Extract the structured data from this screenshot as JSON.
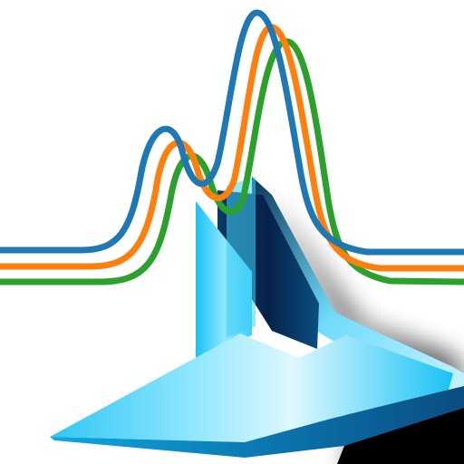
{
  "icon": {
    "semantic_name": "spectrum-peaks-icon",
    "colors": {
      "background": "#ffffff",
      "curve_front": "#1f77b4",
      "curve_middle": "#ff7f0e",
      "curve_back": "#2ca02c",
      "prism_light": "#8fe6ff",
      "prism_main": "#19c2f5",
      "prism_dark": "#06224a",
      "shadow": "#000000"
    },
    "curves": [
      {
        "name": "blue-curve-icon",
        "color_key": "curve_front"
      },
      {
        "name": "orange-curve-icon",
        "color_key": "curve_middle"
      },
      {
        "name": "green-curve-icon",
        "color_key": "curve_back"
      }
    ]
  }
}
